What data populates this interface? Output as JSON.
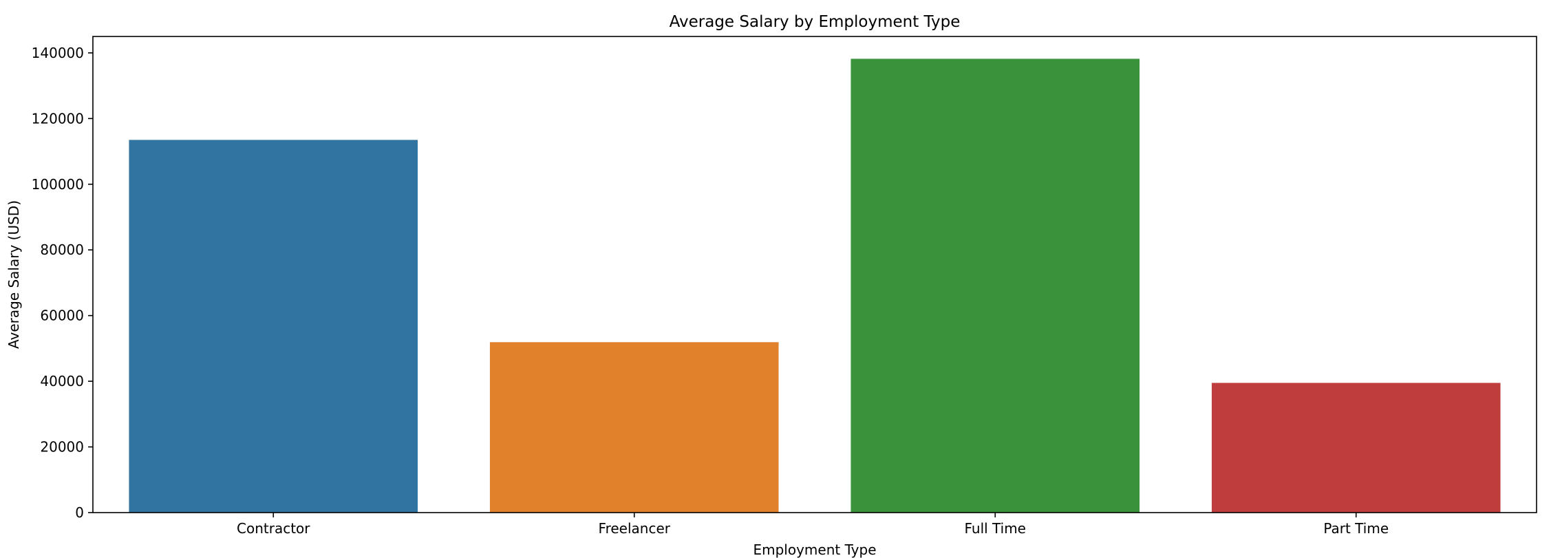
{
  "chart_data": {
    "type": "bar",
    "title": "Average Salary by Employment Type",
    "xlabel": "Employment Type",
    "ylabel": "Average Salary (USD)",
    "categories": [
      "Contractor",
      "Freelancer",
      "Full Time",
      "Part Time"
    ],
    "values": [
      113500,
      51900,
      138200,
      39500
    ],
    "colors": [
      "#3274a1",
      "#e1812c",
      "#3a923a",
      "#c03d3e"
    ],
    "ylim": [
      0,
      145000
    ],
    "yticks": [
      0,
      20000,
      40000,
      60000,
      80000,
      100000,
      120000,
      140000
    ],
    "grid": false,
    "legend": "none"
  }
}
